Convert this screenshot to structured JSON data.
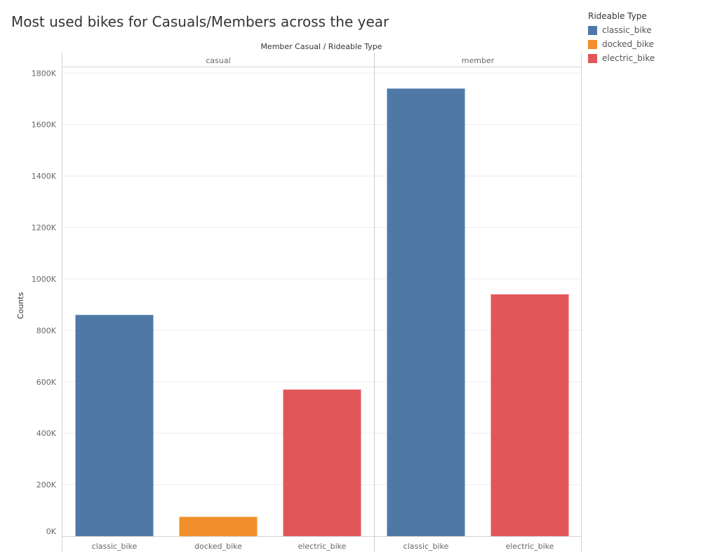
{
  "chart_data": {
    "type": "bar",
    "title": "Most used bikes for Casuals/Members across the year",
    "header_label": "Member Casual  /  Rideable Type",
    "ylabel": "Counts",
    "ylim": [
      0,
      1820000
    ],
    "yticks": [
      0,
      200000,
      400000,
      600000,
      800000,
      1000000,
      1200000,
      1400000,
      1600000,
      1800000
    ],
    "ytick_labels": [
      "0K",
      "200K",
      "400K",
      "600K",
      "800K",
      "1000K",
      "1200K",
      "1400K",
      "1600K",
      "1800K"
    ],
    "grid": true,
    "legend_position": "top-right",
    "legend_title": "Rideable Type",
    "legend": [
      {
        "label": "classic_bike",
        "color": "#4e79a7"
      },
      {
        "label": "docked_bike",
        "color": "#f28e2b"
      },
      {
        "label": "electric_bike",
        "color": "#e15759"
      }
    ],
    "panels": [
      {
        "label": "casual",
        "bars": [
          {
            "category": "classic_bike",
            "value": 860000,
            "color": "#4e79a7"
          },
          {
            "category": "docked_bike",
            "value": 75000,
            "color": "#f28e2b"
          },
          {
            "category": "electric_bike",
            "value": 570000,
            "color": "#e15759"
          }
        ]
      },
      {
        "label": "member",
        "bars": [
          {
            "category": "classic_bike",
            "value": 1740000,
            "color": "#4e79a7"
          },
          {
            "category": "electric_bike",
            "value": 940000,
            "color": "#e15759"
          }
        ]
      }
    ]
  }
}
